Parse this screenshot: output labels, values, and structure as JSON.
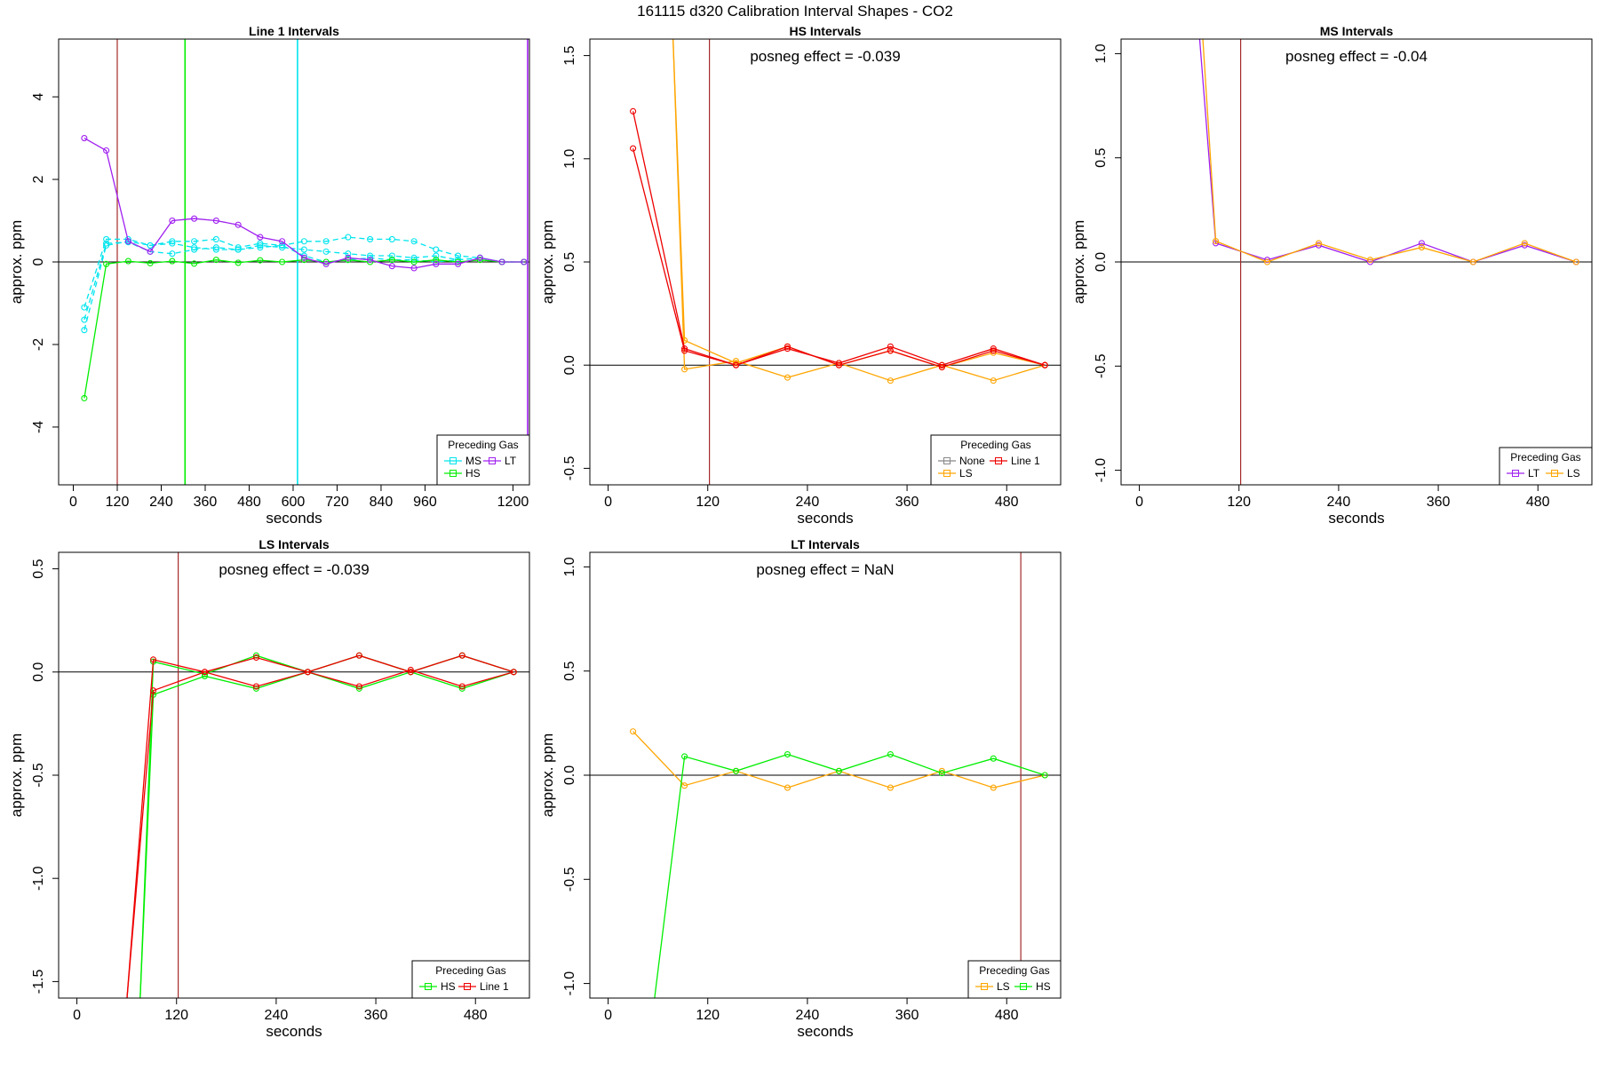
{
  "figure": {
    "title": "161115  d320   Calibration Interval Shapes - CO2"
  },
  "colors": {
    "MS": "#00e5ee",
    "HS": "#00ee00",
    "LT": "#a020f0",
    "LS": "#ffa500",
    "Line 1": "#ee0000",
    "None": "#888888",
    "vline": "#a52a2a",
    "zero": "#000000"
  },
  "chart_data": [
    {
      "type": "line",
      "title": "Line 1 Intervals",
      "annotation": "",
      "xlabel": "seconds",
      "ylabel": "approx. ppm",
      "xlim": [
        -40,
        1245
      ],
      "ylim": [
        -5.4,
        5.4
      ],
      "xticks": [
        0,
        120,
        240,
        360,
        480,
        600,
        720,
        840,
        960,
        1200
      ],
      "yticks": [
        -4,
        -2,
        0,
        2,
        4
      ],
      "vlines": [
        {
          "x": 120,
          "color": "vline"
        },
        {
          "x": 305,
          "color": "HS"
        },
        {
          "x": 612,
          "color": "MS"
        },
        {
          "x": 1240,
          "color": "LT"
        }
      ],
      "legend": {
        "title": "Preceding Gas",
        "items": [
          "MS",
          "LT",
          "HS"
        ],
        "columns": 2,
        "position": "bottom-right"
      },
      "series": [
        {
          "name": "MS",
          "dashed": true,
          "x": [
            30,
            90,
            150,
            210,
            270,
            330,
            390,
            450,
            510,
            570,
            630,
            690,
            750,
            810,
            870,
            930,
            990,
            1050,
            1110,
            1170,
            1230
          ],
          "y": [
            -1.1,
            0.55,
            0.55,
            0.4,
            0.5,
            0.5,
            0.55,
            0.35,
            0.45,
            0.4,
            0.5,
            0.5,
            0.6,
            0.55,
            0.55,
            0.5,
            0.3,
            0.15,
            0.1,
            0.0,
            0.0
          ]
        },
        {
          "name": "MS",
          "dashed": true,
          "x": [
            30,
            90,
            150,
            210,
            270,
            330,
            390,
            450,
            510,
            570,
            630,
            690,
            750,
            810,
            870,
            930,
            990,
            1050,
            1110,
            1170,
            1230
          ],
          "y": [
            -1.4,
            0.45,
            0.48,
            0.25,
            0.2,
            0.3,
            0.35,
            0.3,
            0.4,
            0.35,
            0.3,
            0.25,
            0.2,
            0.15,
            0.15,
            0.1,
            0.15,
            0.05,
            0.1,
            0.0,
            0.0
          ]
        },
        {
          "name": "MS",
          "dashed": true,
          "x": [
            30,
            90,
            150,
            210,
            270,
            330,
            390,
            450,
            510,
            570,
            630,
            690,
            750,
            810,
            870,
            930,
            990,
            1050,
            1110,
            1170,
            1230
          ],
          "y": [
            -1.65,
            0.4,
            0.5,
            0.4,
            0.45,
            0.35,
            0.3,
            0.3,
            0.35,
            0.4,
            0.15,
            0.0,
            0.05,
            0.1,
            0.05,
            0.05,
            0.0,
            0.05,
            0.1,
            0.0,
            0.0
          ]
        },
        {
          "name": "HS",
          "dashed": false,
          "x": [
            30,
            90,
            150,
            210,
            270,
            330,
            390,
            450,
            510,
            570,
            630,
            690,
            750,
            810,
            870,
            930,
            990,
            1050,
            1110,
            1170,
            1230
          ],
          "y": [
            -3.3,
            -0.05,
            0.02,
            -0.03,
            0.02,
            -0.04,
            0.05,
            -0.02,
            0.04,
            0.0,
            0.05,
            0.0,
            0.05,
            0.0,
            0.05,
            0.0,
            0.05,
            0.0,
            0.05,
            0.0,
            0.0
          ]
        },
        {
          "name": "LT",
          "dashed": false,
          "x": [
            30,
            90,
            150,
            210,
            270,
            330,
            390,
            450,
            510,
            570,
            630,
            690,
            750,
            810,
            870,
            930,
            990,
            1050,
            1110,
            1170,
            1230
          ],
          "y": [
            3.0,
            2.7,
            0.5,
            0.25,
            1.0,
            1.05,
            1.0,
            0.9,
            0.6,
            0.5,
            0.1,
            -0.05,
            0.1,
            0.05,
            -0.1,
            -0.15,
            -0.05,
            -0.05,
            0.1,
            0.0,
            0.0
          ]
        }
      ]
    },
    {
      "type": "line",
      "title": "HS Intervals",
      "annotation": "posneg effect = -0.039",
      "xlabel": "seconds",
      "ylabel": "approx. ppm",
      "xlim": [
        -22,
        545
      ],
      "ylim": [
        -0.58,
        1.58
      ],
      "xticks": [
        0,
        120,
        240,
        360,
        480
      ],
      "yticks": [
        -0.5,
        0.0,
        0.5,
        1.0,
        1.5
      ],
      "vlines": [
        {
          "x": 122,
          "color": "vline"
        }
      ],
      "legend": {
        "title": "Preceding Gas",
        "items": [
          "None",
          "Line 1",
          "LS"
        ],
        "columns": 2,
        "position": "bottom-right"
      },
      "series": [
        {
          "name": "LS",
          "dashed": false,
          "x": [
            78,
            92,
            154,
            216,
            278,
            340,
            402,
            464,
            526
          ],
          "y": [
            1.6,
            -0.02,
            0.02,
            -0.06,
            0.01,
            -0.075,
            0.0,
            -0.075,
            0.0
          ]
        },
        {
          "name": "LS",
          "dashed": false,
          "x": [
            78,
            92,
            154,
            216,
            278,
            340,
            402,
            464,
            526
          ],
          "y": [
            1.6,
            0.12,
            0.01,
            0.09,
            0.0,
            0.07,
            -0.01,
            0.06,
            0.0
          ]
        },
        {
          "name": "Line 1",
          "dashed": false,
          "x": [
            30,
            92,
            154,
            216,
            278,
            340,
            402,
            464,
            526
          ],
          "y": [
            1.23,
            0.08,
            0.0,
            0.08,
            0.01,
            0.09,
            0.0,
            0.08,
            0.0
          ]
        },
        {
          "name": "Line 1",
          "dashed": false,
          "x": [
            30,
            92,
            154,
            216,
            278,
            340,
            402,
            464,
            526
          ],
          "y": [
            1.05,
            0.07,
            0.0,
            0.09,
            0.0,
            0.07,
            -0.01,
            0.07,
            0.0
          ]
        }
      ]
    },
    {
      "type": "line",
      "title": "MS Intervals",
      "annotation": "posneg effect = -0.04",
      "xlabel": "seconds",
      "ylabel": "approx. ppm",
      "xlim": [
        -22,
        545
      ],
      "ylim": [
        -1.07,
        1.07
      ],
      "xticks": [
        0,
        120,
        240,
        360,
        480
      ],
      "yticks": [
        -1.0,
        -0.5,
        0.0,
        0.5,
        1.0
      ],
      "vlines": [
        {
          "x": 122,
          "color": "vline"
        }
      ],
      "legend": {
        "title": "Preceding Gas",
        "items": [
          "LT",
          "LS"
        ],
        "columns": 2,
        "position": "bottom-right"
      },
      "series": [
        {
          "name": "LT",
          "dashed": false,
          "x": [
            72,
            92,
            154,
            216,
            278,
            340,
            402,
            464,
            526
          ],
          "y": [
            1.1,
            0.09,
            0.01,
            0.08,
            0.0,
            0.09,
            0.0,
            0.08,
            0.0
          ]
        },
        {
          "name": "LS",
          "dashed": false,
          "x": [
            76,
            92,
            154,
            216,
            278,
            340,
            402,
            464,
            526
          ],
          "y": [
            1.1,
            0.1,
            0.0,
            0.09,
            0.01,
            0.07,
            0.0,
            0.09,
            0.0
          ]
        }
      ]
    },
    {
      "type": "line",
      "title": "LS Intervals",
      "annotation": "posneg effect = -0.039",
      "xlabel": "seconds",
      "ylabel": "approx. ppm",
      "xlim": [
        -22,
        545
      ],
      "ylim": [
        -1.58,
        0.58
      ],
      "xticks": [
        0,
        120,
        240,
        360,
        480
      ],
      "yticks": [
        -1.5,
        -1.0,
        -0.5,
        0.0,
        0.5
      ],
      "vlines": [
        {
          "x": 122,
          "color": "vline"
        }
      ],
      "legend": {
        "title": "Preceding Gas",
        "items": [
          "HS",
          "Line 1"
        ],
        "columns": 2,
        "position": "bottom-right"
      },
      "series": [
        {
          "name": "HS",
          "dashed": false,
          "x": [
            76,
            92,
            154,
            216,
            278,
            340,
            402,
            464,
            526
          ],
          "y": [
            -1.6,
            0.05,
            -0.01,
            0.08,
            0.0,
            0.08,
            0.0,
            0.08,
            0.0
          ]
        },
        {
          "name": "HS",
          "dashed": false,
          "x": [
            76,
            92,
            154,
            216,
            278,
            340,
            402,
            464,
            526
          ],
          "y": [
            -1.6,
            -0.11,
            -0.02,
            -0.08,
            0.0,
            -0.08,
            0.0,
            -0.08,
            0.0
          ]
        },
        {
          "name": "Line 1",
          "dashed": false,
          "x": [
            60,
            92,
            154,
            216,
            278,
            340,
            402,
            464,
            526
          ],
          "y": [
            -1.6,
            0.06,
            0.0,
            0.07,
            0.0,
            0.08,
            0.0,
            0.08,
            0.0
          ]
        },
        {
          "name": "Line 1",
          "dashed": false,
          "x": [
            60,
            92,
            154,
            216,
            278,
            340,
            402,
            464,
            526
          ],
          "y": [
            -1.6,
            -0.09,
            0.0,
            -0.07,
            0.0,
            -0.07,
            0.01,
            -0.07,
            0.0
          ]
        }
      ]
    },
    {
      "type": "line",
      "title": "LT Intervals",
      "annotation": "posneg effect = NaN",
      "xlabel": "seconds",
      "ylabel": "approx. ppm",
      "xlim": [
        -22,
        545
      ],
      "ylim": [
        -1.07,
        1.07
      ],
      "xticks": [
        0,
        120,
        240,
        360,
        480
      ],
      "yticks": [
        -1.0,
        -0.5,
        0.0,
        0.5,
        1.0
      ],
      "vlines": [
        {
          "x": 497,
          "color": "vline"
        }
      ],
      "legend": {
        "title": "Preceding Gas",
        "items": [
          "LS",
          "HS"
        ],
        "columns": 2,
        "position": "bottom-right"
      },
      "series": [
        {
          "name": "LS",
          "dashed": false,
          "x": [
            30,
            92,
            154,
            216,
            278,
            340,
            402,
            464,
            526
          ],
          "y": [
            0.21,
            -0.05,
            0.02,
            -0.06,
            0.02,
            -0.06,
            0.02,
            -0.06,
            0.0
          ]
        },
        {
          "name": "HS",
          "dashed": false,
          "x": [
            55,
            92,
            154,
            216,
            278,
            340,
            402,
            464,
            526
          ],
          "y": [
            -1.1,
            0.09,
            0.02,
            0.1,
            0.02,
            0.1,
            0.01,
            0.08,
            0.0
          ]
        }
      ]
    }
  ]
}
